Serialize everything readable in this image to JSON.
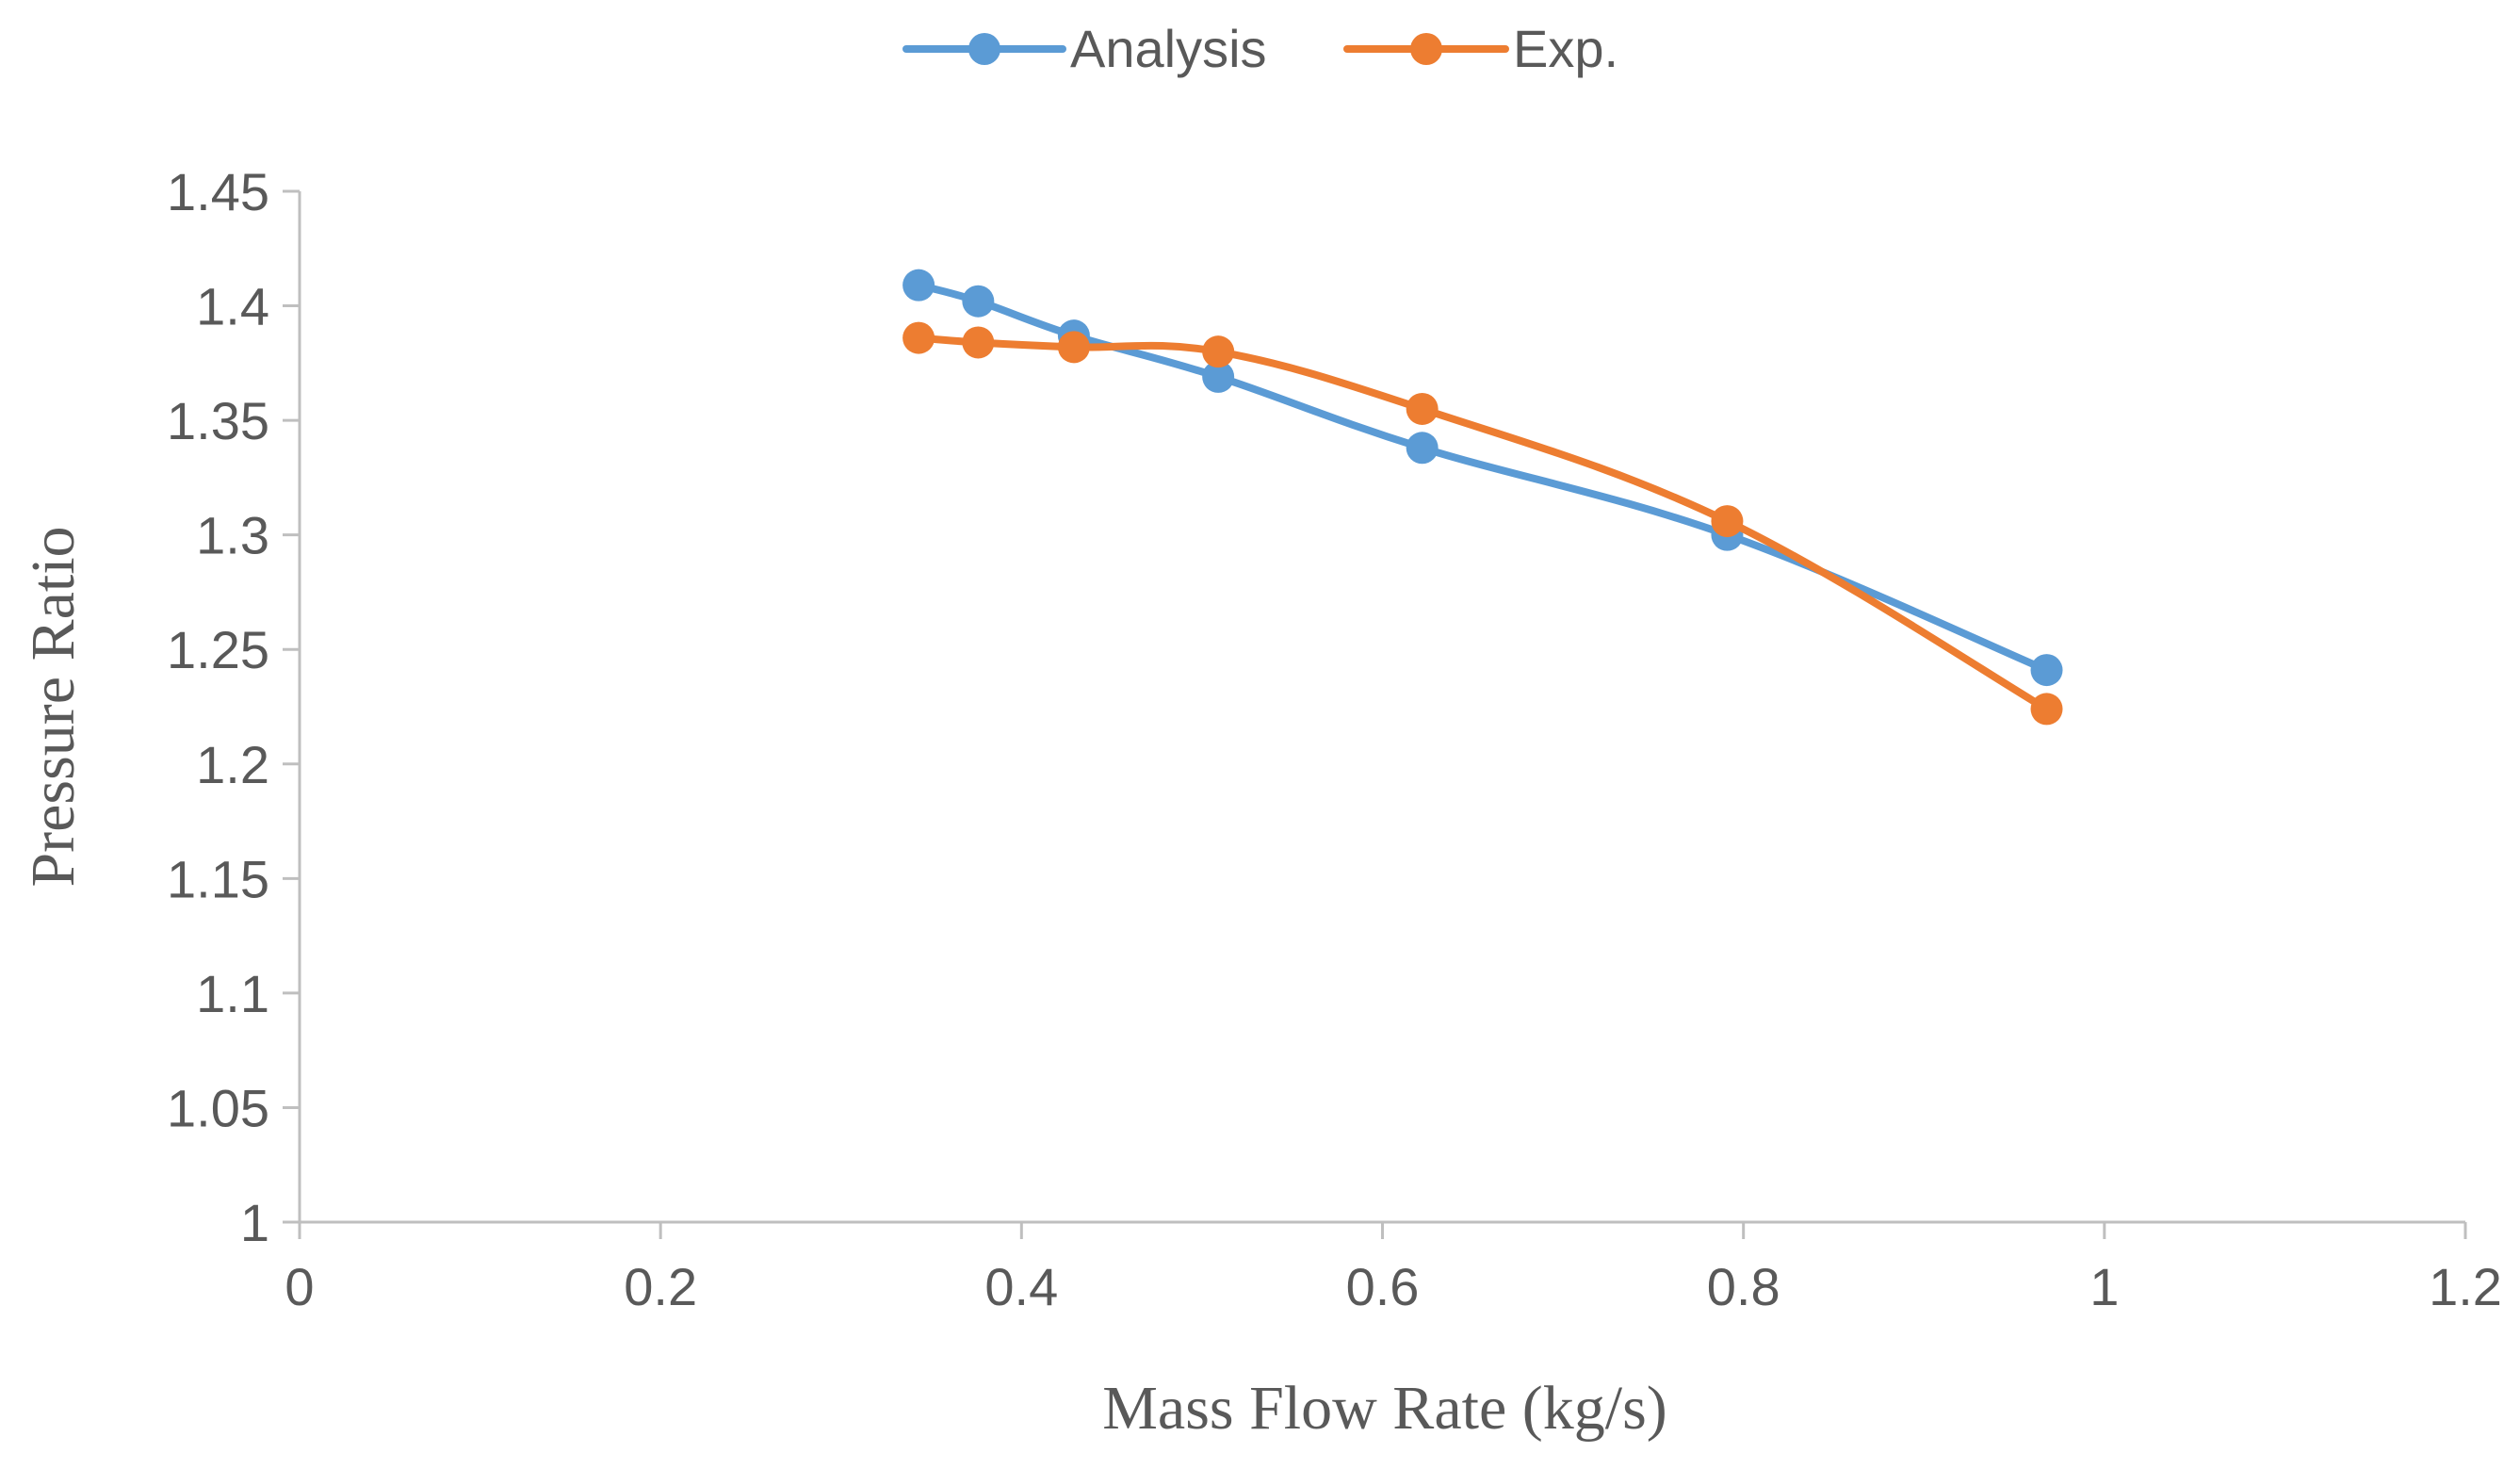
{
  "chart_data": {
    "type": "line",
    "title": "",
    "xlabel": "Mass Flow Rate (kg/s)",
    "ylabel": "Pressure Ratio",
    "xlim": [
      0,
      1.2
    ],
    "ylim": [
      1,
      1.45
    ],
    "xticks": [
      0,
      0.2,
      0.4,
      0.6,
      0.8,
      1,
      1.2
    ],
    "xtick_labels": [
      "0",
      "0.2",
      "0.4",
      "0.6",
      "0.8",
      "1",
      "1.2"
    ],
    "yticks": [
      1,
      1.05,
      1.1,
      1.15,
      1.2,
      1.25,
      1.3,
      1.35,
      1.4,
      1.45
    ],
    "ytick_labels": [
      "1",
      "1.05",
      "1.1",
      "1.15",
      "1.2",
      "1.25",
      "1.3",
      "1.35",
      "1.4",
      "1.45"
    ],
    "grid": false,
    "legend_position": "top-center",
    "series": [
      {
        "name": "Analysis",
        "color": "#5B9BD5",
        "x": [
          0.343,
          0.376,
          0.429,
          0.509,
          0.622,
          0.791,
          0.968
        ],
        "y": [
          1.409,
          1.402,
          1.387,
          1.369,
          1.338,
          1.3,
          1.241
        ]
      },
      {
        "name": "Exp.",
        "color": "#ED7D31",
        "x": [
          0.343,
          0.376,
          0.429,
          0.509,
          0.622,
          0.791,
          0.968
        ],
        "y": [
          1.386,
          1.384,
          1.382,
          1.38,
          1.355,
          1.306,
          1.224
        ]
      }
    ]
  }
}
